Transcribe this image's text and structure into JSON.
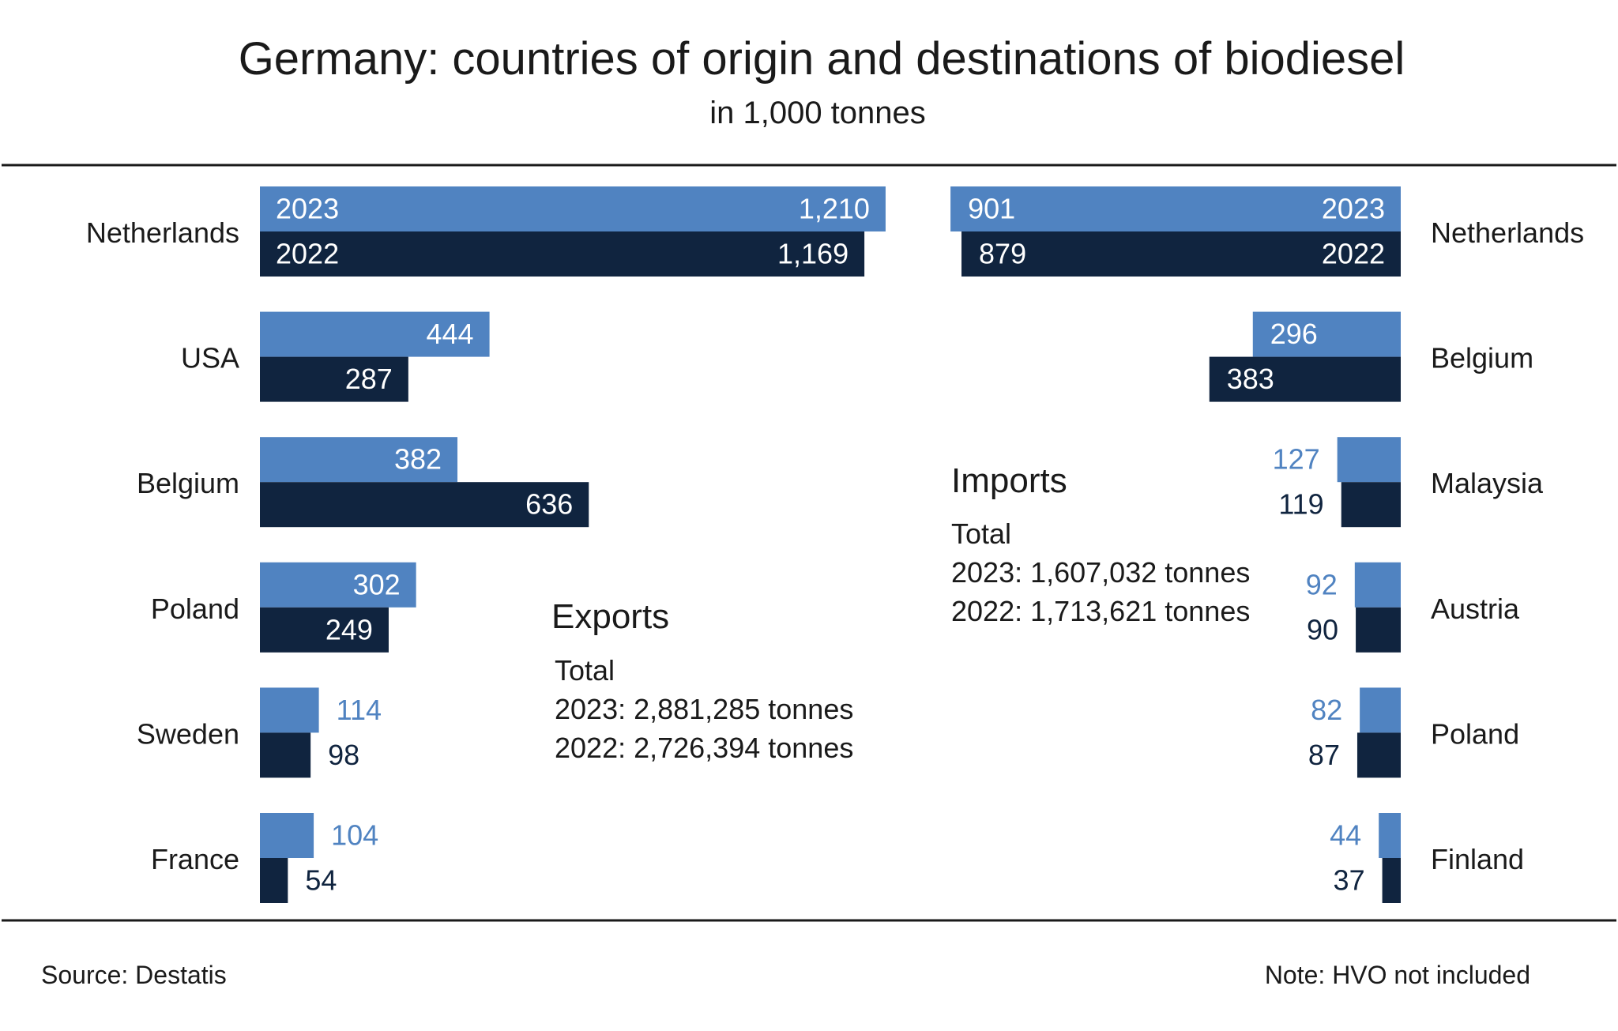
{
  "title": "Germany: countries of origin and destinations of biodiesel",
  "subtitle": "in 1,000 tonnes",
  "source": "Source:  Destatis",
  "note": "Note: HVO not included",
  "colors": {
    "y2023": "#5083c1",
    "y2022": "#10243f",
    "text_light": "#ffffff",
    "text_dark": "#10243f",
    "text_blue": "#5083c1",
    "rule": "#1a1a1a"
  },
  "exports": {
    "heading": "Exports",
    "total_label": "Total",
    "total_2023": "2023: 2,881,285 tonnes",
    "total_2022": "2022: 2,726,394 tonnes"
  },
  "imports": {
    "heading": "Imports",
    "total_label": "Total",
    "total_2023": "2023: 1,607,032 tonnes",
    "total_2022": "2022: 1,713,621 tonnes"
  },
  "chart_data": [
    {
      "type": "bar",
      "title": "Exports",
      "orientation": "horizontal",
      "categories": [
        "Netherlands",
        "USA",
        "Belgium",
        "Poland",
        "Sweden",
        "France"
      ],
      "series": [
        {
          "name": "2023",
          "values": [
            1210,
            444,
            382,
            302,
            114,
            104
          ],
          "labels": [
            "1,210",
            "444",
            "382",
            "302",
            "114",
            "104"
          ]
        },
        {
          "name": "2022",
          "values": [
            1169,
            287,
            636,
            249,
            98,
            54
          ],
          "labels": [
            "1,169",
            "287",
            "636",
            "249",
            "98",
            "54"
          ]
        }
      ],
      "unit": "1,000 tonnes"
    },
    {
      "type": "bar",
      "title": "Imports",
      "orientation": "horizontal",
      "direction": "right-to-left",
      "categories": [
        "Netherlands",
        "Belgium",
        "Malaysia",
        "Austria",
        "Poland",
        "Finland"
      ],
      "series": [
        {
          "name": "2023",
          "values": [
            901,
            296,
            127,
            92,
            82,
            44
          ],
          "labels": [
            "901",
            "296",
            "127",
            "92",
            "82",
            "44"
          ]
        },
        {
          "name": "2022",
          "values": [
            879,
            383,
            119,
            90,
            87,
            37
          ],
          "labels": [
            "879",
            "383",
            "119",
            "90",
            "87",
            "37"
          ]
        }
      ],
      "unit": "1,000 tonnes"
    }
  ]
}
